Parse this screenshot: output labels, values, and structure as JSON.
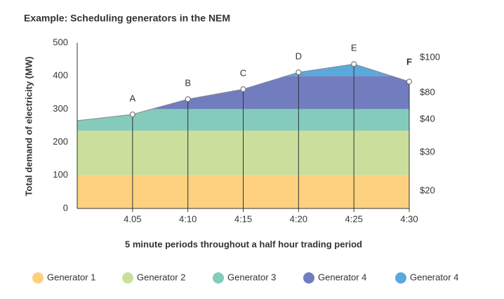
{
  "chart_data": {
    "type": "stacked-area",
    "title": "Example: Scheduling generators in the NEM",
    "y_label": "Total demand of electricity (MW)",
    "x_label": "5 minute periods throughout a half hour trading period",
    "x": [
      0,
      5,
      6.74,
      10,
      15,
      18.9,
      20,
      25,
      28.4,
      30
    ],
    "xlim": [
      0,
      30
    ],
    "xticks": [
      {
        "value": 5,
        "label": "4.05"
      },
      {
        "value": 10,
        "label": "4:10"
      },
      {
        "value": 15,
        "label": "4:15"
      },
      {
        "value": 20,
        "label": "4:20"
      },
      {
        "value": 25,
        "label": "4:25"
      },
      {
        "value": 30,
        "label": "4:30"
      }
    ],
    "ylim": [
      0,
      500
    ],
    "yticks": [
      0,
      100,
      200,
      300,
      400,
      500
    ],
    "series": [
      {
        "name": "Generator 1",
        "color": "#fdd17f",
        "price": "$20",
        "values": [
          100,
          100,
          100,
          100,
          100,
          100,
          100,
          100,
          100,
          100
        ]
      },
      {
        "name": "Generator 2",
        "color": "#c9df9b",
        "price": "$30",
        "values": [
          135,
          135,
          135,
          135,
          135,
          135,
          135,
          135,
          135,
          135
        ]
      },
      {
        "name": "Generator 3",
        "color": "#84cbbb",
        "price": "$40",
        "values": [
          30,
          49,
          65,
          65,
          65,
          65,
          65,
          65,
          65,
          65
        ]
      },
      {
        "name": "Generator 4",
        "color": "#717dbf",
        "price": "$80",
        "values": [
          0,
          0,
          0,
          30,
          60,
          100,
          100,
          100,
          100,
          83
        ]
      },
      {
        "name": "Generator 4",
        "color": "#59a9dd",
        "price": "$100",
        "values": [
          0,
          0,
          0,
          0,
          0,
          0,
          11,
          36,
          0,
          0
        ]
      }
    ],
    "points": {
      "labels": [
        "A",
        "B",
        "C",
        "D",
        "E",
        "F"
      ],
      "x": [
        5,
        10,
        15,
        20,
        25,
        30
      ],
      "values": [
        284,
        330,
        360,
        411,
        436,
        383
      ]
    }
  }
}
